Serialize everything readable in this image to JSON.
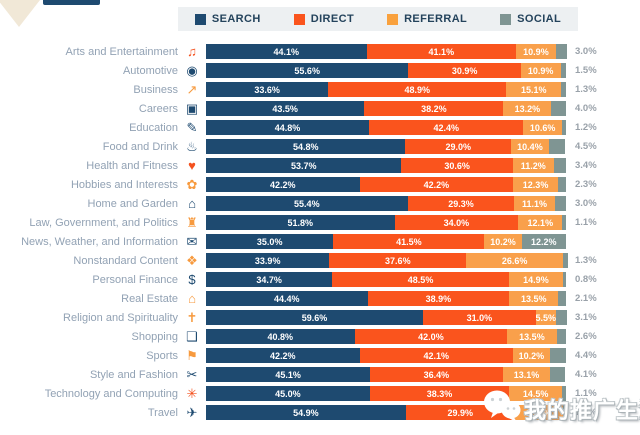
{
  "page": {
    "background": "#ffffff"
  },
  "decorations": {
    "corner_triangle_color": "#f1e8d7",
    "top_strip_color": "#1e4a70"
  },
  "legend": {
    "background": "#edf0f2",
    "items": [
      {
        "label": "SEARCH",
        "color": "#1e4a70"
      },
      {
        "label": "DIRECT",
        "color": "#fa541d"
      },
      {
        "label": "REFERRAL",
        "color": "#f9a13d"
      },
      {
        "label": "SOCIAL",
        "color": "#7f9593"
      }
    ]
  },
  "chart_data": {
    "type": "bar",
    "stacked": true,
    "orientation": "horizontal",
    "value_unit": "%",
    "xlim": [
      0,
      100
    ],
    "grid": false,
    "legend_position": "top",
    "title": "",
    "categories": [
      "Arts and Entertainment",
      "Automotive",
      "Business",
      "Careers",
      "Education",
      "Food and Drink",
      "Health and Fitness",
      "Hobbies and Interests",
      "Home and Garden",
      "Law, Government, and Politics",
      "News, Weather, and Information",
      "Nonstandard Content",
      "Personal Finance",
      "Real Estate",
      "Religion and Spirituality",
      "Shopping",
      "Sports",
      "Style and Fashion",
      "Technology and Computing",
      "Travel"
    ],
    "icons": [
      {
        "name": "arts-and-entertainment-icon",
        "glyph": "♫",
        "color": "#f4511e"
      },
      {
        "name": "automotive-icon",
        "glyph": "◉",
        "color": "#1e4a70"
      },
      {
        "name": "business-icon",
        "glyph": "↗",
        "color": "#f79a3e"
      },
      {
        "name": "careers-icon",
        "glyph": "▣",
        "color": "#1e4a70"
      },
      {
        "name": "education-icon",
        "glyph": "✎",
        "color": "#1e4a70"
      },
      {
        "name": "food-and-drink-icon",
        "glyph": "♨",
        "color": "#1e4a70"
      },
      {
        "name": "health-and-fitness-icon",
        "glyph": "♥",
        "color": "#f4511e"
      },
      {
        "name": "hobbies-and-interests-icon",
        "glyph": "✿",
        "color": "#f79a3e"
      },
      {
        "name": "home-and-garden-icon",
        "glyph": "⌂",
        "color": "#1e4a70"
      },
      {
        "name": "law-government-politics-icon",
        "glyph": "♜",
        "color": "#f79a3e"
      },
      {
        "name": "news-weather-information-icon",
        "glyph": "✉",
        "color": "#1e4a70"
      },
      {
        "name": "nonstandard-content-icon",
        "glyph": "❖",
        "color": "#f79a3e"
      },
      {
        "name": "personal-finance-icon",
        "glyph": "$",
        "color": "#1e4a70"
      },
      {
        "name": "real-estate-icon",
        "glyph": "⌂",
        "color": "#f79a3e"
      },
      {
        "name": "religion-spirituality-icon",
        "glyph": "✝",
        "color": "#f79a3e"
      },
      {
        "name": "shopping-icon",
        "glyph": "❑",
        "color": "#1e4a70"
      },
      {
        "name": "sports-icon",
        "glyph": "⚑",
        "color": "#f79a3e"
      },
      {
        "name": "style-and-fashion-icon",
        "glyph": "✂",
        "color": "#1e4a70"
      },
      {
        "name": "technology-computing-icon",
        "glyph": "✳",
        "color": "#f4511e"
      },
      {
        "name": "travel-icon",
        "glyph": "✈",
        "color": "#1e4a70"
      }
    ],
    "series": [
      {
        "name": "Search",
        "color": "#1e4a70",
        "values": [
          44.1,
          55.6,
          33.6,
          43.5,
          44.8,
          54.8,
          53.7,
          42.2,
          55.4,
          51.8,
          35.0,
          33.9,
          34.7,
          44.4,
          59.6,
          40.8,
          42.2,
          45.1,
          45.0,
          54.9
        ]
      },
      {
        "name": "Direct",
        "color": "#fa541d",
        "values": [
          41.1,
          30.9,
          48.9,
          38.2,
          42.4,
          29.0,
          30.6,
          42.2,
          29.3,
          34.0,
          41.5,
          37.6,
          48.5,
          38.9,
          31.0,
          42.0,
          42.1,
          36.4,
          38.3,
          29.9
        ]
      },
      {
        "name": "Referral",
        "color": "#f9a04b",
        "values": [
          10.9,
          10.9,
          15.1,
          13.2,
          10.6,
          10.4,
          11.2,
          12.3,
          11.1,
          12.1,
          10.2,
          26.6,
          14.9,
          13.5,
          5.5,
          13.5,
          10.2,
          13.1,
          14.5,
          13.2
        ]
      },
      {
        "name": "Social",
        "color": "#7f9593",
        "values": [
          3.0,
          1.5,
          1.3,
          4.0,
          1.2,
          4.5,
          3.4,
          2.3,
          3.0,
          1.1,
          12.2,
          1.3,
          0.8,
          2.1,
          3.1,
          2.6,
          4.4,
          4.1,
          1.1,
          1.2
        ]
      }
    ]
  },
  "watermark": {
    "text": "我的推广生涯",
    "icon": "wechat-icon"
  }
}
